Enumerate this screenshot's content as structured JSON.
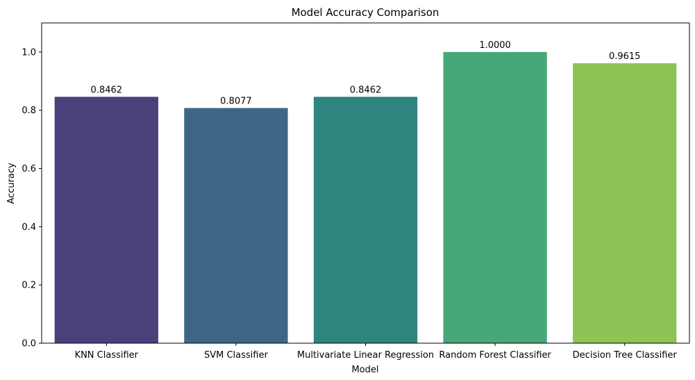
{
  "chart_data": {
    "type": "bar",
    "title": "Model Accuracy Comparison",
    "xlabel": "Model",
    "ylabel": "Accuracy",
    "categories": [
      "KNN Classifier",
      "SVM Classifier",
      "Multivariate Linear Regression",
      "Random Forest Classifier",
      "Decision Tree Classifier"
    ],
    "values": [
      0.8462,
      0.8077,
      0.8462,
      1.0,
      0.9615
    ],
    "data_labels": [
      "0.8462",
      "0.8077",
      "0.8462",
      "1.0000",
      "0.9615"
    ],
    "colors": [
      "#4b4079",
      "#3d6684",
      "#2e847e",
      "#46a878",
      "#8dc455"
    ],
    "ylim": [
      0,
      1.1
    ],
    "yticks": [
      0.0,
      0.2,
      0.4,
      0.6,
      0.8,
      1.0
    ],
    "ytick_labels": [
      "0.0",
      "0.2",
      "0.4",
      "0.6",
      "0.8",
      "1.0"
    ],
    "grid": false,
    "legend": "none"
  }
}
